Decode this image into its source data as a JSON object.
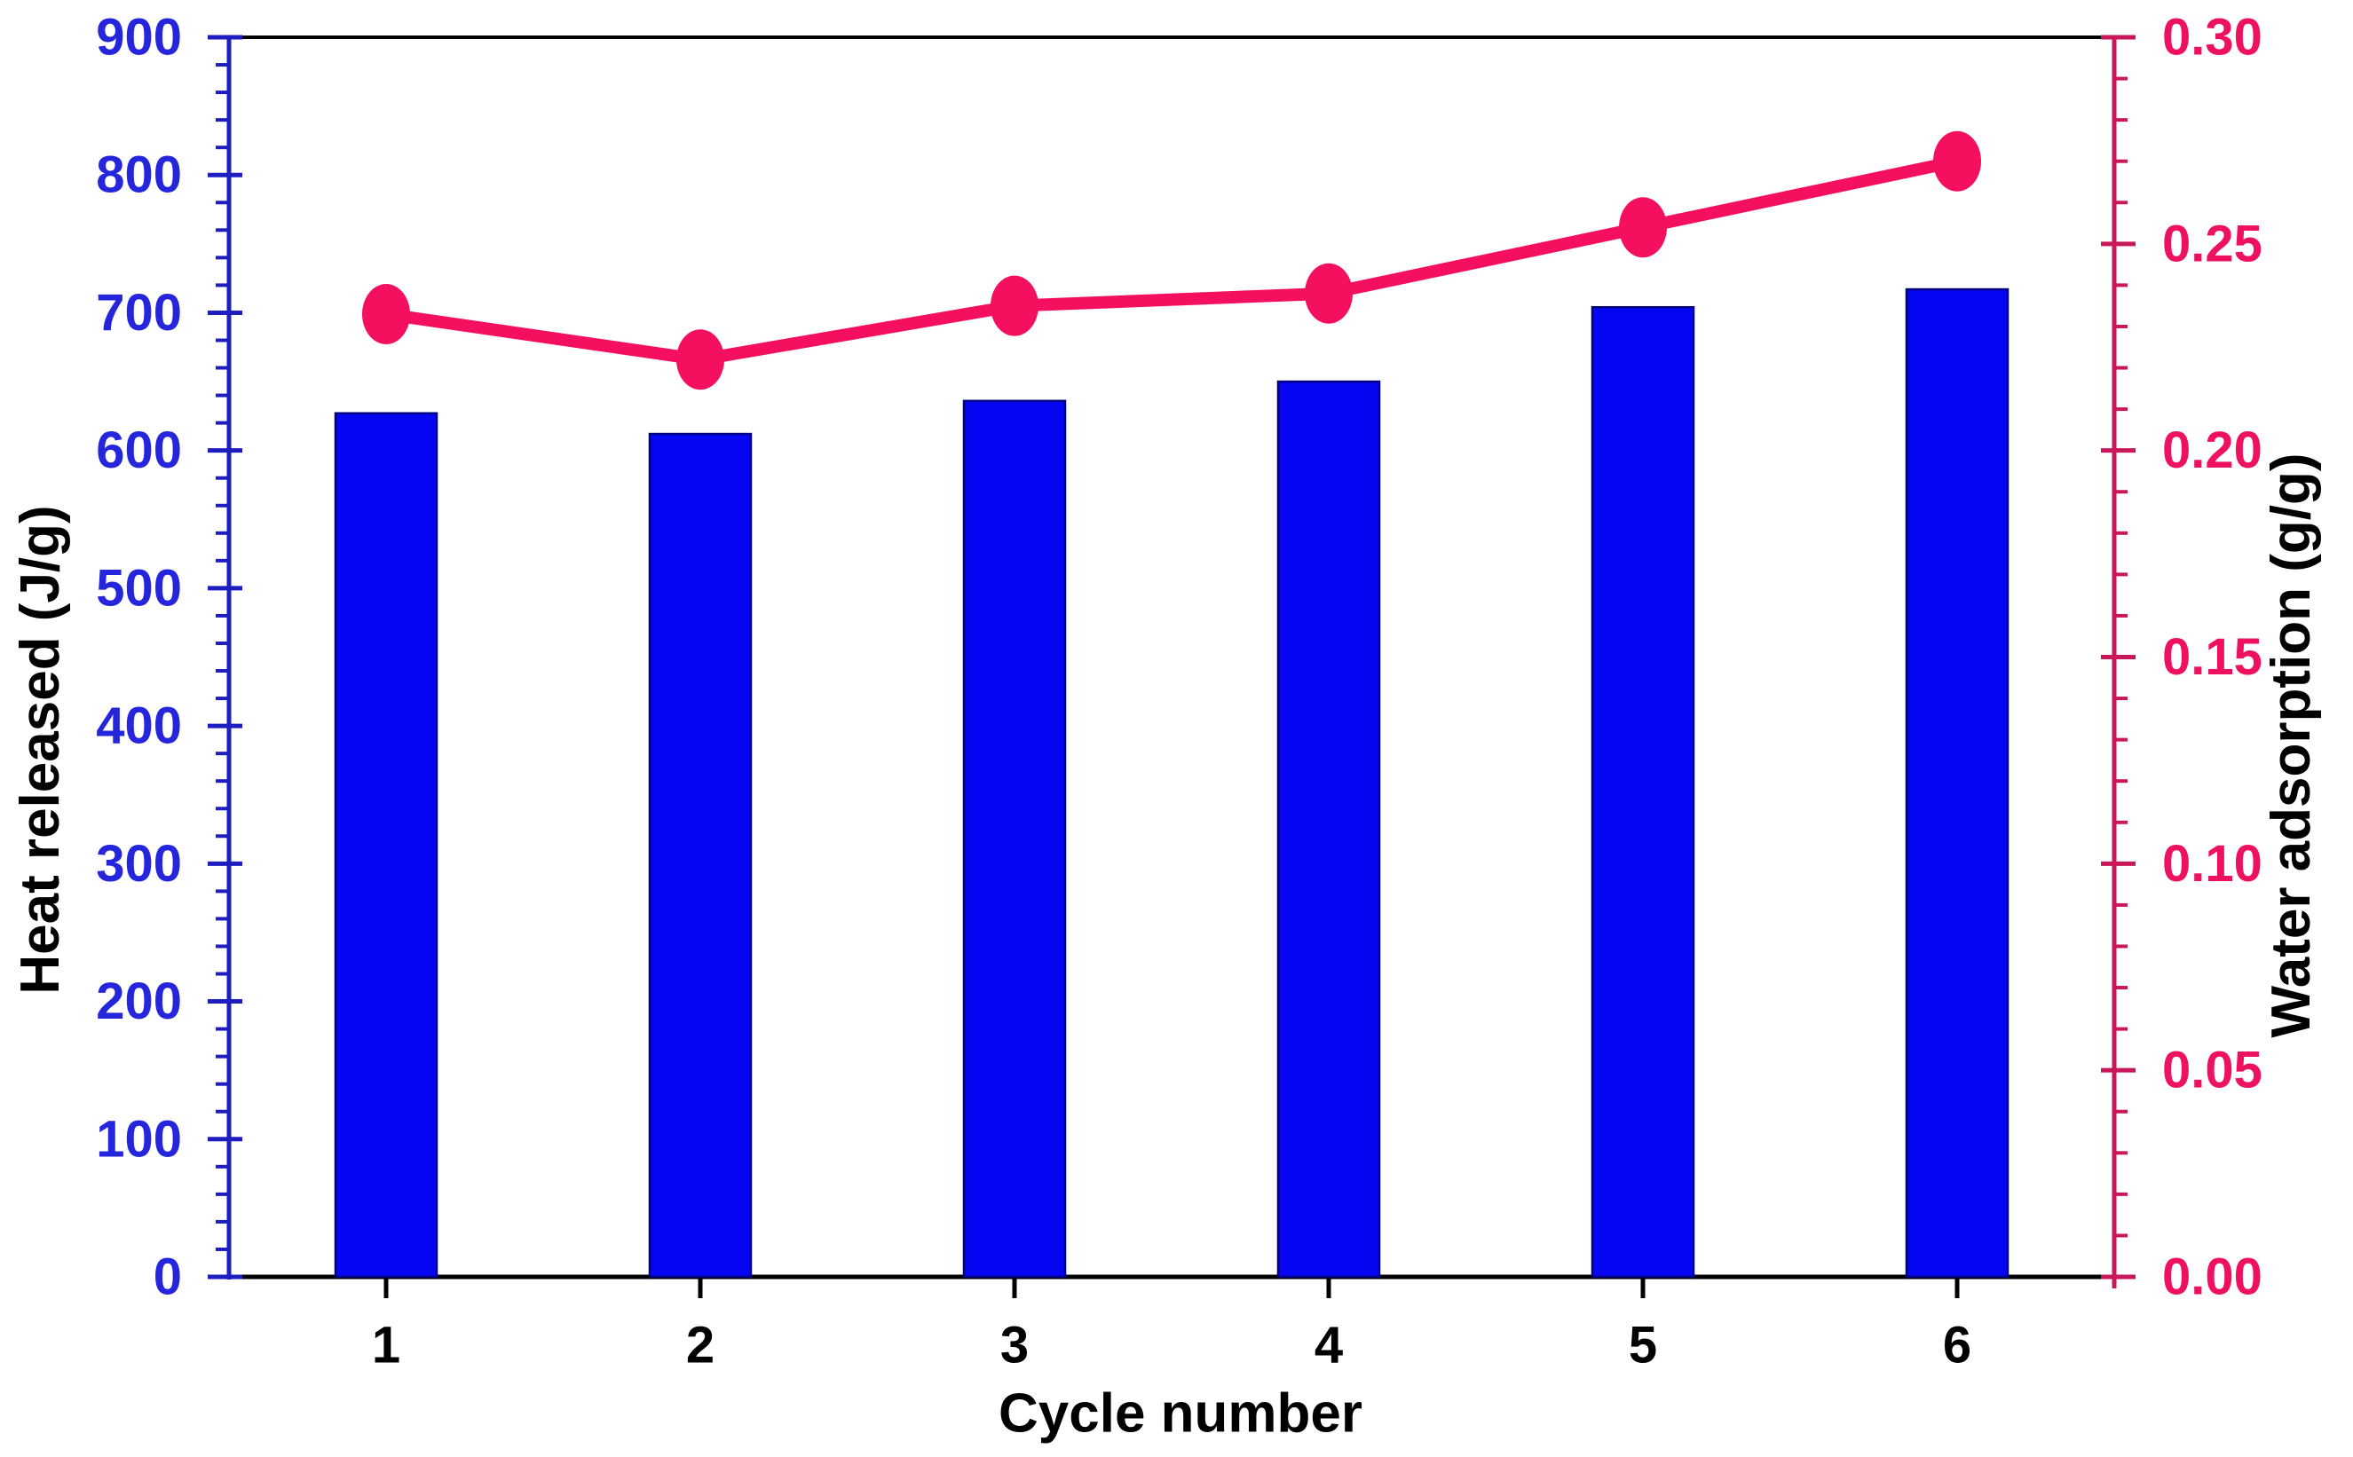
{
  "figure": {
    "description": "Dual-axis cyclability chart: blue bars of heat released and pink line with circular markers of water adsorption versus cycle number",
    "background": "#ffffff"
  },
  "chart_data": {
    "type": "bar",
    "subtype": "bar+line-dual-axis",
    "categories": [
      "1",
      "2",
      "3",
      "4",
      "5",
      "6"
    ],
    "series": [
      {
        "name": "Heat released",
        "chart_type": "bar",
        "axis": "left",
        "values": [
          627,
          612,
          636,
          650,
          704,
          717
        ],
        "color": "#0505f2",
        "edge_color": "#000080"
      },
      {
        "name": "Water adsorption",
        "chart_type": "line",
        "axis": "right",
        "values": [
          0.233,
          0.222,
          0.235,
          0.238,
          0.254,
          0.27
        ],
        "color": "#f50f5f",
        "marker": "ellipse"
      }
    ],
    "title": "",
    "xlabel": "Cycle number",
    "left_axis": {
      "label": "Heat released (J/g)",
      "min": 0,
      "max": 900,
      "major_step": 100,
      "minor_step": 20,
      "tick_labels": [
        "0",
        "100",
        "200",
        "300",
        "400",
        "500",
        "600",
        "700",
        "800",
        "900"
      ],
      "text_color": "#2525dc",
      "line_color": "#1e1ec0"
    },
    "right_axis": {
      "label": "Water adsorption (g/g)",
      "min": 0,
      "max": 0.3,
      "major_step": 0.05,
      "minor_step": 0.01,
      "tick_labels": [
        "0.00",
        "0.05",
        "0.10",
        "0.15",
        "0.20",
        "0.25",
        "0.30"
      ],
      "text_color": "#ee1160",
      "line_color": "#c8175a"
    },
    "x_axis": {
      "text_color": "#000000",
      "line_color": "#000000"
    },
    "grid": false,
    "legend": false
  }
}
